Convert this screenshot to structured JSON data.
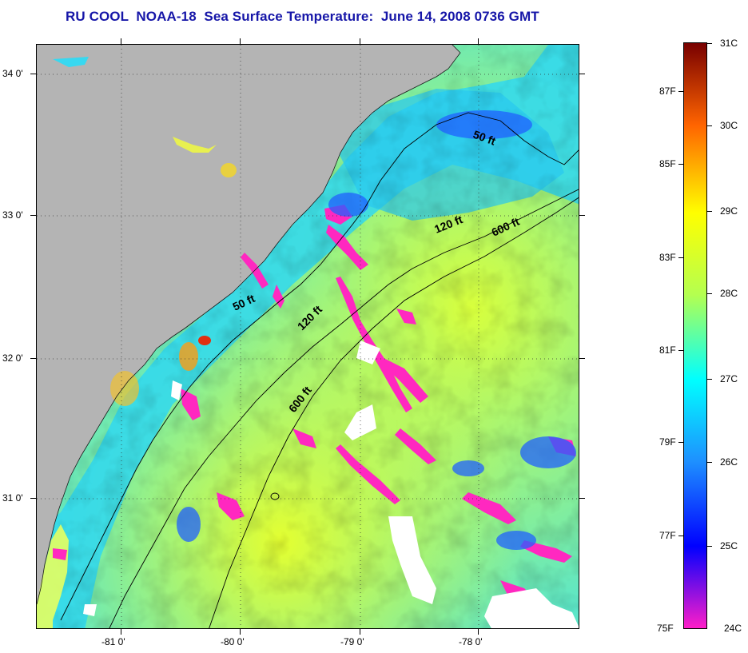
{
  "title": "RU COOL  NOAA-18  Sea Surface Temperature:  June 14, 2008 0736 GMT",
  "map": {
    "latitude_labels": [
      "34 0'",
      "33 0'",
      "32 0'",
      "31 0'"
    ],
    "longitude_labels": [
      "-81 0'",
      "-80 0'",
      "-79 0'",
      "-78 0'"
    ],
    "contour_labels": [
      "50 ft",
      "50 ft",
      "120 ft",
      "120 ft",
      "600 ft",
      "600 ft"
    ],
    "land_color": "#b4b4b4",
    "missing_data_color": "#ffffff"
  },
  "colorbar": {
    "fahrenheit_labels": [
      "87F",
      "85F",
      "83F",
      "81F",
      "79F",
      "77F",
      "75F"
    ],
    "celsius_labels": [
      "31C",
      "30C",
      "29C",
      "28C",
      "27C",
      "26C",
      "25C",
      "24C"
    ],
    "colors": {
      "24C": "#ff1ec8",
      "25C": "#0000ff",
      "26C": "#1e90ff",
      "27C": "#00ffff",
      "28C": "#b4ff50",
      "29C": "#ffff00",
      "30C": "#ff6400",
      "31C": "#780000"
    }
  }
}
